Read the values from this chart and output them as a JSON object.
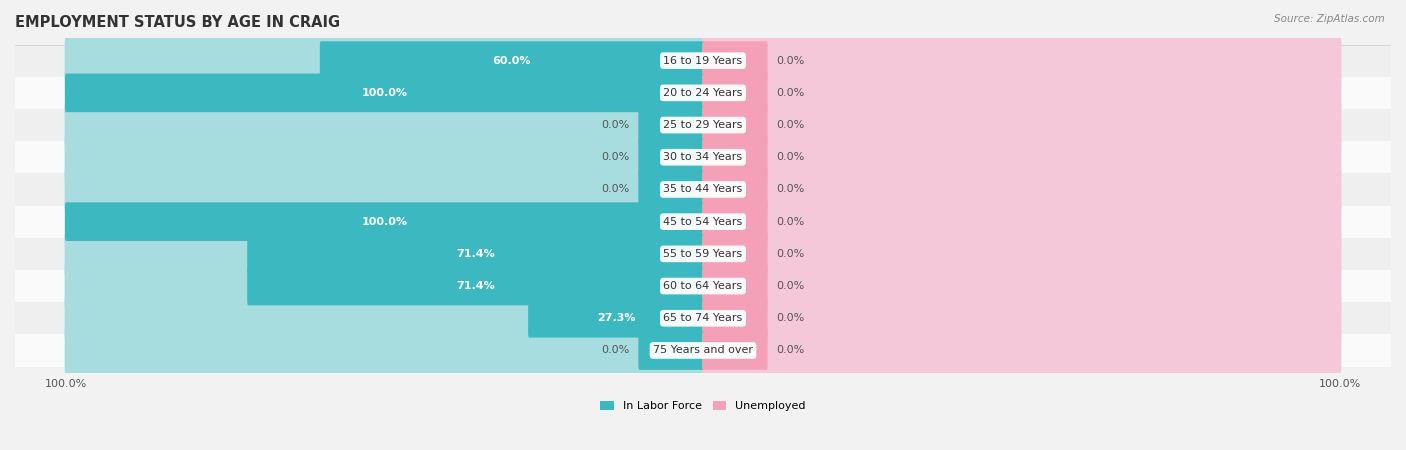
{
  "title": "EMPLOYMENT STATUS BY AGE IN CRAIG",
  "source": "Source: ZipAtlas.com",
  "age_groups": [
    "16 to 19 Years",
    "20 to 24 Years",
    "25 to 29 Years",
    "30 to 34 Years",
    "35 to 44 Years",
    "45 to 54 Years",
    "55 to 59 Years",
    "60 to 64 Years",
    "65 to 74 Years",
    "75 Years and over"
  ],
  "labor_force": [
    60.0,
    100.0,
    0.0,
    0.0,
    0.0,
    100.0,
    71.4,
    71.4,
    27.3,
    0.0
  ],
  "unemployed": [
    0.0,
    0.0,
    0.0,
    0.0,
    0.0,
    0.0,
    0.0,
    0.0,
    0.0,
    0.0
  ],
  "labor_color": "#3cb8c0",
  "labor_bg_color": "#a8dde0",
  "unemployed_color": "#f4a0b8",
  "unemployed_bg_color": "#f4c8d8",
  "row_bg_light": "#efefef",
  "row_bg_white": "#fafafa",
  "label_box_color": "#ffffff",
  "fig_bg": "#f2f2f2",
  "title_fontsize": 10.5,
  "label_fontsize": 8.0,
  "tick_fontsize": 8.0,
  "bar_height": 0.6,
  "min_stub": 10,
  "figsize": [
    14.06,
    4.5
  ],
  "dpi": 100
}
